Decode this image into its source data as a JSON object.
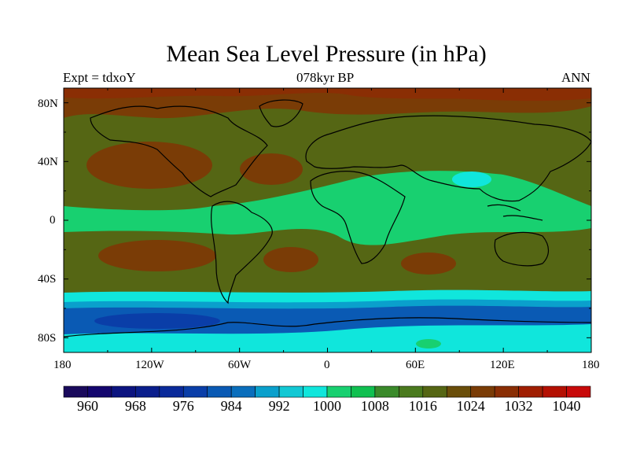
{
  "title": "Mean Sea Level Pressure (in hPa)",
  "experiment": "Expt = tdxoY",
  "period": "078kyr BP",
  "season": "ANN",
  "lat_ticks": [
    "80N",
    "40N",
    "0",
    "40S",
    "80S"
  ],
  "lon_ticks": [
    "180",
    "120W",
    "60W",
    "0",
    "60E",
    "120E",
    "180"
  ],
  "colorbar": {
    "labels": [
      "960",
      "968",
      "976",
      "984",
      "992",
      "1000",
      "1008",
      "1016",
      "1024",
      "1032",
      "1040"
    ],
    "colors": [
      "#1a0a5c",
      "#14066e",
      "#0c1480",
      "#0a1e8c",
      "#0a2a9a",
      "#0a3ea8",
      "#0a5ab4",
      "#0a6ebc",
      "#0aa0cc",
      "#12c8d4",
      "#10e6dc",
      "#18d070",
      "#10c050",
      "#3a8a2a",
      "#4a7a1e",
      "#556614",
      "#6a4e0a",
      "#7a3c06",
      "#8a2e04",
      "#a01e02",
      "#b41002",
      "#c80a0a"
    ]
  },
  "map_colors": {
    "base": "#556614",
    "high": "#7a3c06",
    "highest": "#8a2e04",
    "mid": "#4a7a1e",
    "low": "#18d070",
    "cyan": "#10e6dc",
    "teal": "#0aa0cc",
    "blue": "#0a5ab4",
    "deep": "#0a3ea8",
    "coast": "#000000"
  }
}
